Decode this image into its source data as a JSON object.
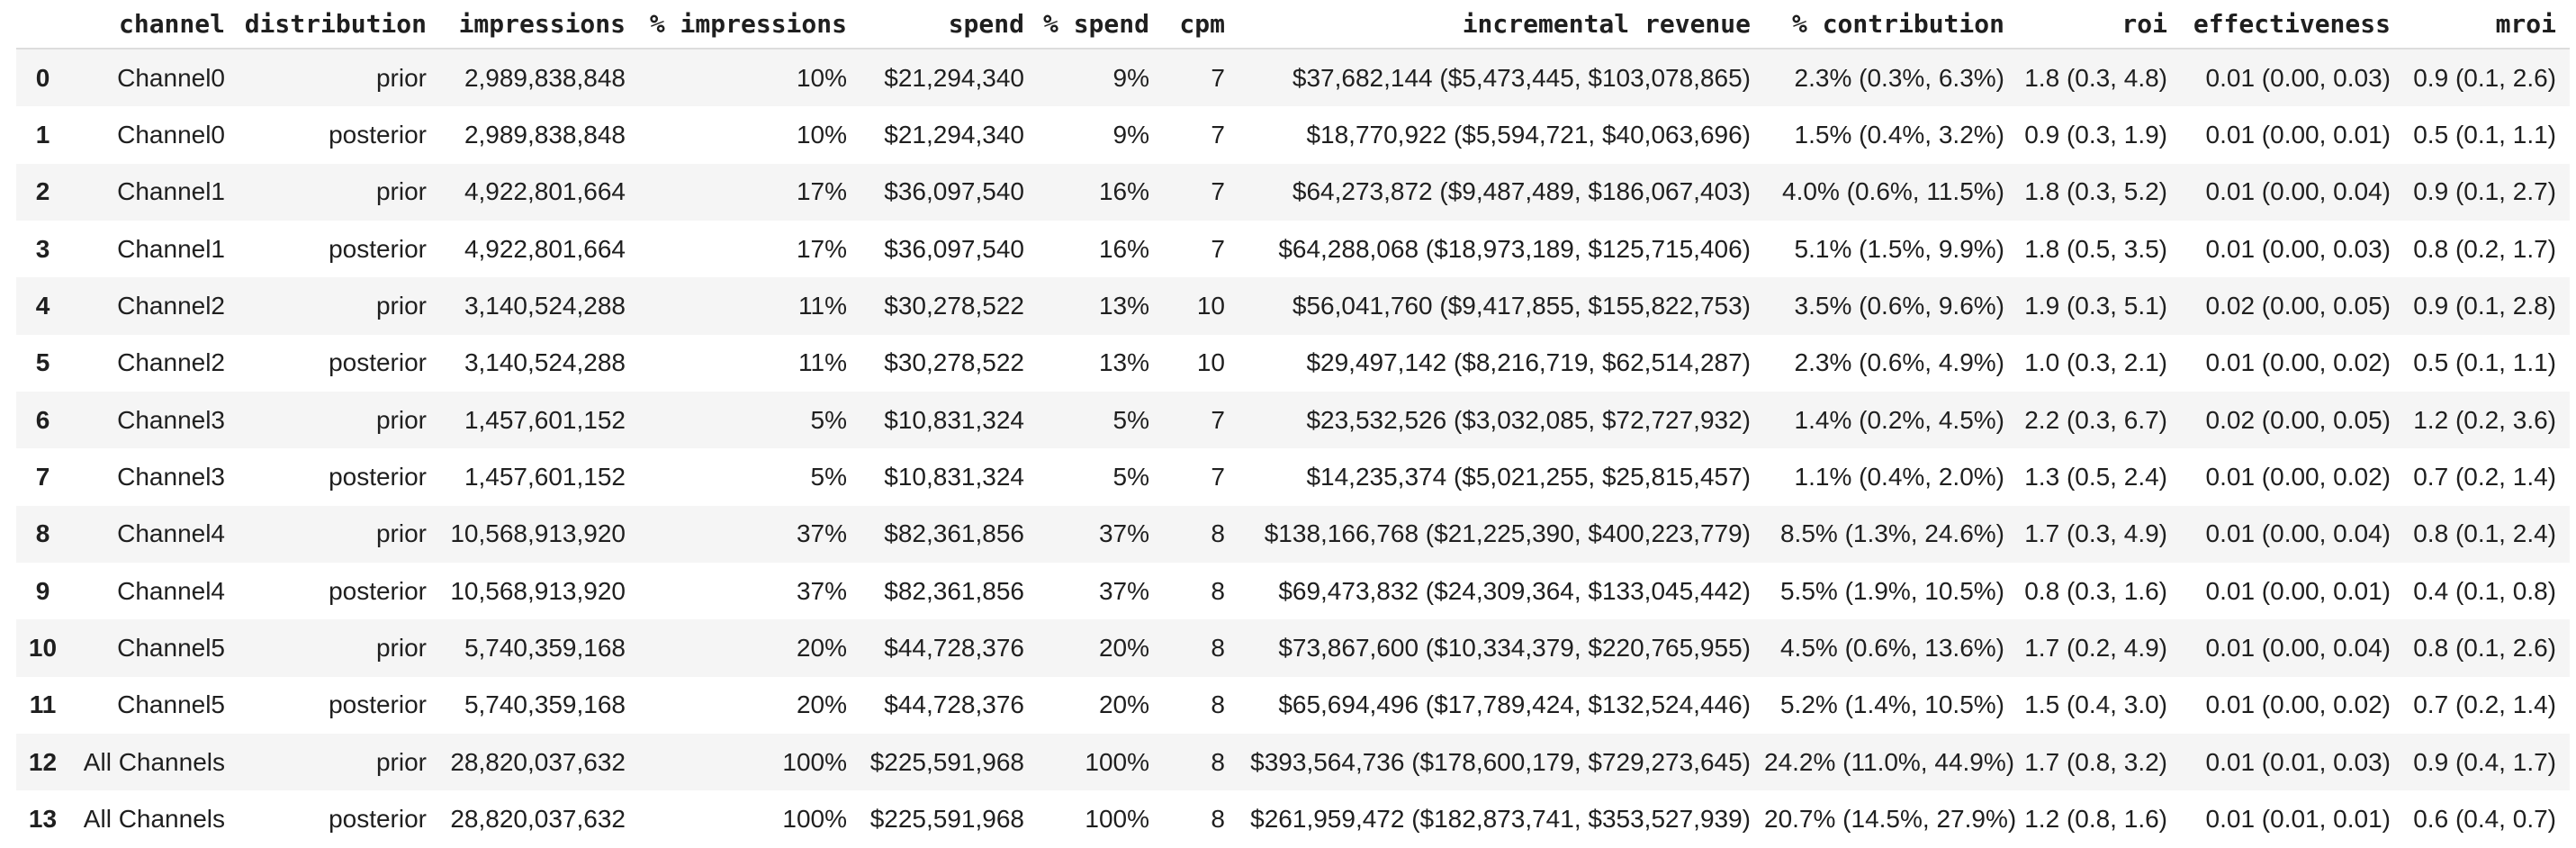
{
  "colors": {
    "background": "#ffffff",
    "text": "#1f1f1f",
    "stripe": "#f5f5f5",
    "header_border": "#dddddd"
  },
  "table": {
    "index_header": "",
    "columns": [
      "channel",
      "distribution",
      "impressions",
      "% impressions",
      "spend",
      "% spend",
      "cpm",
      "incremental revenue",
      "% contribution",
      "roi",
      "effectiveness",
      "mroi"
    ],
    "rows": [
      {
        "index": "0",
        "cells": [
          "Channel0",
          "prior",
          "2,989,838,848",
          "10%",
          "$21,294,340",
          "9%",
          "7",
          "$37,682,144 ($5,473,445, $103,078,865)",
          "2.3% (0.3%, 6.3%)",
          "1.8 (0.3, 4.8)",
          "0.01 (0.00, 0.03)",
          "0.9 (0.1, 2.6)"
        ]
      },
      {
        "index": "1",
        "cells": [
          "Channel0",
          "posterior",
          "2,989,838,848",
          "10%",
          "$21,294,340",
          "9%",
          "7",
          "$18,770,922 ($5,594,721, $40,063,696)",
          "1.5% (0.4%, 3.2%)",
          "0.9 (0.3, 1.9)",
          "0.01 (0.00, 0.01)",
          "0.5 (0.1, 1.1)"
        ]
      },
      {
        "index": "2",
        "cells": [
          "Channel1",
          "prior",
          "4,922,801,664",
          "17%",
          "$36,097,540",
          "16%",
          "7",
          "$64,273,872 ($9,487,489, $186,067,403)",
          "4.0% (0.6%, 11.5%)",
          "1.8 (0.3, 5.2)",
          "0.01 (0.00, 0.04)",
          "0.9 (0.1, 2.7)"
        ]
      },
      {
        "index": "3",
        "cells": [
          "Channel1",
          "posterior",
          "4,922,801,664",
          "17%",
          "$36,097,540",
          "16%",
          "7",
          "$64,288,068 ($18,973,189, $125,715,406)",
          "5.1% (1.5%, 9.9%)",
          "1.8 (0.5, 3.5)",
          "0.01 (0.00, 0.03)",
          "0.8 (0.2, 1.7)"
        ]
      },
      {
        "index": "4",
        "cells": [
          "Channel2",
          "prior",
          "3,140,524,288",
          "11%",
          "$30,278,522",
          "13%",
          "10",
          "$56,041,760 ($9,417,855, $155,822,753)",
          "3.5% (0.6%, 9.6%)",
          "1.9 (0.3, 5.1)",
          "0.02 (0.00, 0.05)",
          "0.9 (0.1, 2.8)"
        ]
      },
      {
        "index": "5",
        "cells": [
          "Channel2",
          "posterior",
          "3,140,524,288",
          "11%",
          "$30,278,522",
          "13%",
          "10",
          "$29,497,142 ($8,216,719, $62,514,287)",
          "2.3% (0.6%, 4.9%)",
          "1.0 (0.3, 2.1)",
          "0.01 (0.00, 0.02)",
          "0.5 (0.1, 1.1)"
        ]
      },
      {
        "index": "6",
        "cells": [
          "Channel3",
          "prior",
          "1,457,601,152",
          "5%",
          "$10,831,324",
          "5%",
          "7",
          "$23,532,526 ($3,032,085, $72,727,932)",
          "1.4% (0.2%, 4.5%)",
          "2.2 (0.3, 6.7)",
          "0.02 (0.00, 0.05)",
          "1.2 (0.2, 3.6)"
        ]
      },
      {
        "index": "7",
        "cells": [
          "Channel3",
          "posterior",
          "1,457,601,152",
          "5%",
          "$10,831,324",
          "5%",
          "7",
          "$14,235,374 ($5,021,255, $25,815,457)",
          "1.1% (0.4%, 2.0%)",
          "1.3 (0.5, 2.4)",
          "0.01 (0.00, 0.02)",
          "0.7 (0.2, 1.4)"
        ]
      },
      {
        "index": "8",
        "cells": [
          "Channel4",
          "prior",
          "10,568,913,920",
          "37%",
          "$82,361,856",
          "37%",
          "8",
          "$138,166,768 ($21,225,390, $400,223,779)",
          "8.5% (1.3%, 24.6%)",
          "1.7 (0.3, 4.9)",
          "0.01 (0.00, 0.04)",
          "0.8 (0.1, 2.4)"
        ]
      },
      {
        "index": "9",
        "cells": [
          "Channel4",
          "posterior",
          "10,568,913,920",
          "37%",
          "$82,361,856",
          "37%",
          "8",
          "$69,473,832 ($24,309,364, $133,045,442)",
          "5.5% (1.9%, 10.5%)",
          "0.8 (0.3, 1.6)",
          "0.01 (0.00, 0.01)",
          "0.4 (0.1, 0.8)"
        ]
      },
      {
        "index": "10",
        "cells": [
          "Channel5",
          "prior",
          "5,740,359,168",
          "20%",
          "$44,728,376",
          "20%",
          "8",
          "$73,867,600 ($10,334,379, $220,765,955)",
          "4.5% (0.6%, 13.6%)",
          "1.7 (0.2, 4.9)",
          "0.01 (0.00, 0.04)",
          "0.8 (0.1, 2.6)"
        ]
      },
      {
        "index": "11",
        "cells": [
          "Channel5",
          "posterior",
          "5,740,359,168",
          "20%",
          "$44,728,376",
          "20%",
          "8",
          "$65,694,496 ($17,789,424, $132,524,446)",
          "5.2% (1.4%, 10.5%)",
          "1.5 (0.4, 3.0)",
          "0.01 (0.00, 0.02)",
          "0.7 (0.2, 1.4)"
        ]
      },
      {
        "index": "12",
        "cells": [
          "All Channels",
          "prior",
          "28,820,037,632",
          "100%",
          "$225,591,968",
          "100%",
          "8",
          "$393,564,736 ($178,600,179, $729,273,645)",
          "24.2% (11.0%, 44.9%)",
          "1.7 (0.8, 3.2)",
          "0.01 (0.01, 0.03)",
          "0.9 (0.4, 1.7)"
        ]
      },
      {
        "index": "13",
        "cells": [
          "All Channels",
          "posterior",
          "28,820,037,632",
          "100%",
          "$225,591,968",
          "100%",
          "8",
          "$261,959,472 ($182,873,741, $353,527,939)",
          "20.7% (14.5%, 27.9%)",
          "1.2 (0.8, 1.6)",
          "0.01 (0.01, 0.01)",
          "0.6 (0.4, 0.7)"
        ]
      }
    ]
  }
}
